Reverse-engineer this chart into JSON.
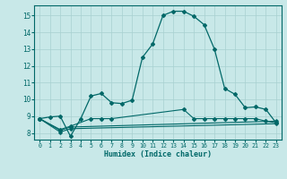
{
  "xlabel": "Humidex (Indice chaleur)",
  "xlim": [
    -0.5,
    23.5
  ],
  "ylim": [
    7.6,
    15.6
  ],
  "xticks": [
    0,
    1,
    2,
    3,
    4,
    5,
    6,
    7,
    8,
    9,
    10,
    11,
    12,
    13,
    14,
    15,
    16,
    17,
    18,
    19,
    20,
    21,
    22,
    23
  ],
  "yticks": [
    8,
    9,
    10,
    11,
    12,
    13,
    14,
    15
  ],
  "bg_color": "#c8e8e8",
  "line_color": "#006868",
  "grid_color": "#a8d0d0",
  "line1_x": [
    0,
    1,
    2,
    3,
    4,
    5,
    6,
    7,
    8,
    9,
    10,
    11,
    12,
    13,
    14,
    15,
    16,
    17,
    18,
    19,
    20,
    21,
    22,
    23
  ],
  "line1_y": [
    8.85,
    8.95,
    9.0,
    7.8,
    8.85,
    10.2,
    10.35,
    9.8,
    9.75,
    9.95,
    12.5,
    13.3,
    15.0,
    15.25,
    15.25,
    14.95,
    14.45,
    13.0,
    10.65,
    10.3,
    9.5,
    9.55,
    9.4,
    8.6
  ],
  "line2_x": [
    0,
    2,
    3,
    5,
    6,
    7,
    14,
    15,
    16,
    17,
    18,
    19,
    20,
    21,
    22,
    23
  ],
  "line2_y": [
    8.85,
    8.2,
    8.4,
    8.85,
    8.85,
    8.85,
    9.4,
    8.85,
    8.85,
    8.85,
    8.85,
    8.85,
    8.85,
    8.85,
    8.7,
    8.6
  ],
  "line3_x": [
    0,
    2,
    3,
    23
  ],
  "line3_y": [
    8.85,
    8.15,
    8.35,
    8.7
  ],
  "line4_x": [
    0,
    2,
    3,
    23
  ],
  "line4_y": [
    8.85,
    8.05,
    8.25,
    8.55
  ]
}
